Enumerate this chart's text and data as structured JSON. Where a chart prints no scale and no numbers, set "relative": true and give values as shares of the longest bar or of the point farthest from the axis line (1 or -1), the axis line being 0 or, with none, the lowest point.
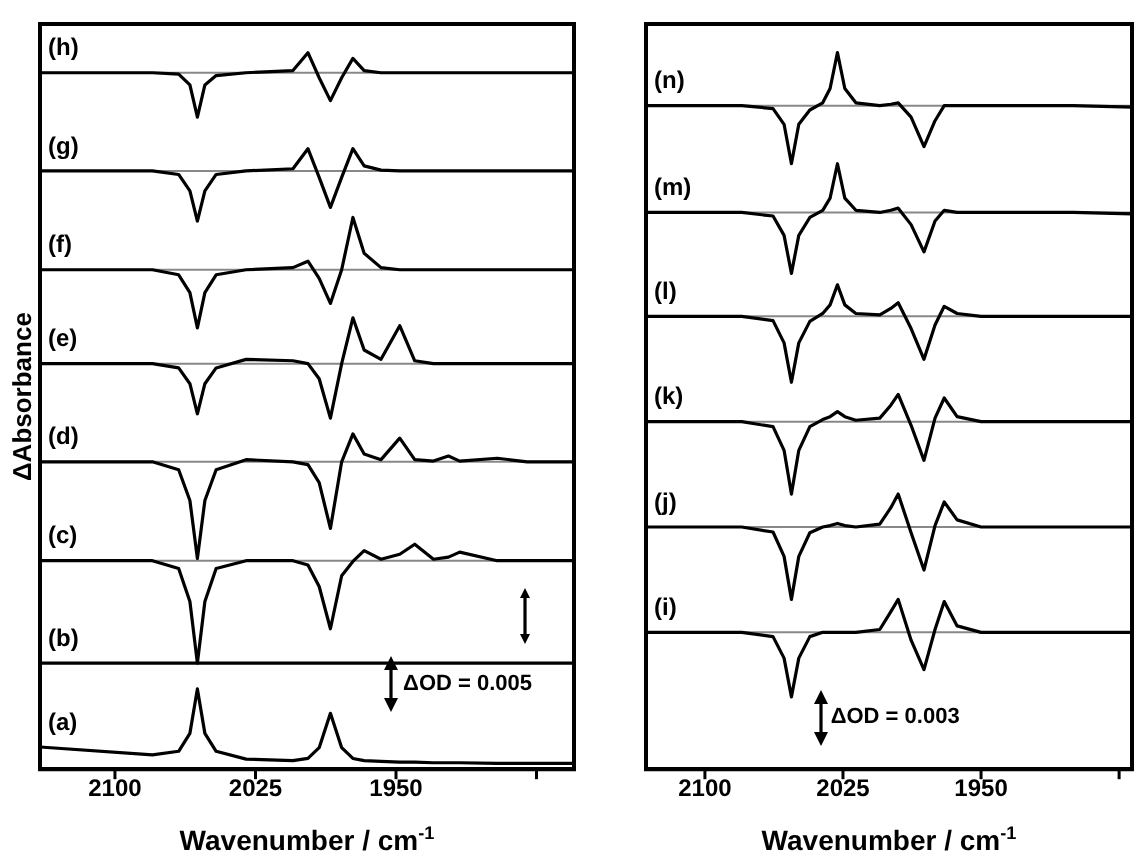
{
  "chart_data": [
    {
      "type": "line",
      "xlabel": "Wavenumber / cm$^{-1}$",
      "ylabel": "ΔAbsorbance",
      "relative": true,
      "legend": false,
      "grid": false,
      "marker": "none",
      "line_style": "solid",
      "tick_labels": "x",
      "xlim": [
        2140,
        1855
      ],
      "xticks": [
        2100,
        2025,
        1950,
        {
          "value": 1875,
          "label": null
        }
      ],
      "x": [
        2140,
        2080,
        2066,
        2060,
        2056,
        2052,
        2046,
        2030,
        2005,
        1997,
        1991,
        1985,
        1979,
        1973,
        1967,
        1958,
        1948,
        1940,
        1930,
        1922,
        1916,
        1896,
        1880,
        1855
      ],
      "series": [
        {
          "name": "(h)",
          "color": "#000000",
          "values": [
            0.972,
            0.972,
            0.97,
            0.955,
            0.91,
            0.955,
            0.968,
            0.972,
            0.975,
            1.0,
            0.965,
            0.933,
            0.965,
            0.992,
            0.975,
            0.972,
            0.972,
            0.972,
            0.972,
            0.972,
            0.972,
            0.972,
            0.972,
            0.972
          ]
        },
        {
          "name": "(g)",
          "color": "#000000",
          "values": [
            0.835,
            0.835,
            0.83,
            0.807,
            0.765,
            0.807,
            0.83,
            0.835,
            0.838,
            0.866,
            0.826,
            0.784,
            0.826,
            0.866,
            0.842,
            0.836,
            0.835,
            0.835,
            0.835,
            0.835,
            0.835,
            0.835,
            0.835,
            0.835
          ]
        },
        {
          "name": "(f)",
          "color": "#000000",
          "values": [
            0.697,
            0.697,
            0.69,
            0.665,
            0.616,
            0.665,
            0.69,
            0.697,
            0.7,
            0.709,
            0.685,
            0.65,
            0.697,
            0.77,
            0.72,
            0.7,
            0.697,
            0.697,
            0.697,
            0.697,
            0.697,
            0.697,
            0.697,
            0.697
          ]
        },
        {
          "name": "(e)",
          "color": "#000000",
          "values": [
            0.566,
            0.566,
            0.56,
            0.538,
            0.496,
            0.538,
            0.56,
            0.572,
            0.57,
            0.566,
            0.545,
            0.49,
            0.566,
            0.63,
            0.585,
            0.572,
            0.619,
            0.57,
            0.566,
            0.566,
            0.566,
            0.566,
            0.566,
            0.566
          ]
        },
        {
          "name": "(d)",
          "color": "#000000",
          "values": [
            0.429,
            0.429,
            0.418,
            0.375,
            0.294,
            0.375,
            0.418,
            0.432,
            0.429,
            0.425,
            0.4,
            0.336,
            0.429,
            0.468,
            0.44,
            0.432,
            0.462,
            0.432,
            0.43,
            0.437,
            0.43,
            0.434,
            0.429,
            0.429
          ]
        },
        {
          "name": "(c)",
          "color": "#000000",
          "values": [
            0.291,
            0.291,
            0.28,
            0.234,
            0.148,
            0.234,
            0.28,
            0.291,
            0.291,
            0.285,
            0.255,
            0.196,
            0.27,
            0.29,
            0.305,
            0.293,
            0.3,
            0.314,
            0.293,
            0.296,
            0.303,
            0.291,
            0.291,
            0.291
          ]
        },
        {
          "name": "(b)",
          "color": "#000000",
          "values": [
            0.148,
            0.148,
            0.148,
            0.148,
            0.148,
            0.148,
            0.148,
            0.148,
            0.148,
            0.148,
            0.148,
            0.148,
            0.148,
            0.148,
            0.148,
            0.148,
            0.148,
            0.148,
            0.148,
            0.148,
            0.148,
            0.148,
            0.148,
            0.148
          ]
        },
        {
          "name": "(a)",
          "color": "#000000",
          "values": [
            0.031,
            0.02,
            0.025,
            0.05,
            0.112,
            0.05,
            0.025,
            0.014,
            0.012,
            0.015,
            0.03,
            0.078,
            0.03,
            0.015,
            0.012,
            0.011,
            0.01,
            0.01,
            0.009,
            0.009,
            0.009,
            0.008,
            0.008,
            0.008
          ]
        }
      ],
      "ref_lines": [
        {
          "axis": "y",
          "value": 0.972,
          "color": "#888888"
        },
        {
          "axis": "y",
          "value": 0.835,
          "color": "#888888"
        },
        {
          "axis": "y",
          "value": 0.697,
          "color": "#888888"
        },
        {
          "axis": "y",
          "value": 0.566,
          "color": "#888888"
        },
        {
          "axis": "y",
          "value": 0.429,
          "color": "#888888"
        },
        {
          "axis": "y",
          "value": 0.291,
          "color": "#888888"
        }
      ],
      "annotations": [
        "ΔOD = 0.005"
      ]
    },
    {
      "type": "line",
      "xlabel": "Wavenumber / cm$^{-1}$",
      "relative": true,
      "legend": false,
      "grid": false,
      "marker": "none",
      "line_style": "solid",
      "tick_labels": "x",
      "xlim": [
        2132,
        1868
      ],
      "xticks": [
        2100,
        2025,
        1950,
        {
          "value": 1875,
          "label": null
        }
      ],
      "x": [
        2132,
        2080,
        2063,
        2057,
        2053,
        2049,
        2043,
        2036,
        2032,
        2028,
        2024,
        2018,
        2005,
        1999,
        1995,
        1988,
        1981,
        1975,
        1970,
        1963,
        1950,
        1900,
        1868
      ],
      "series": [
        {
          "name": "(n)",
          "color": "#000000",
          "values": [
            0.926,
            0.926,
            0.922,
            0.9,
            0.845,
            0.9,
            0.92,
            0.93,
            0.95,
            1.0,
            0.95,
            0.93,
            0.926,
            0.928,
            0.93,
            0.91,
            0.869,
            0.905,
            0.926,
            0.926,
            0.926,
            0.926,
            0.924
          ]
        },
        {
          "name": "(m)",
          "color": "#000000",
          "values": [
            0.777,
            0.777,
            0.772,
            0.745,
            0.692,
            0.745,
            0.77,
            0.78,
            0.797,
            0.845,
            0.797,
            0.78,
            0.777,
            0.78,
            0.783,
            0.76,
            0.722,
            0.765,
            0.78,
            0.777,
            0.777,
            0.777,
            0.775
          ]
        },
        {
          "name": "(l)",
          "color": "#000000",
          "values": [
            0.632,
            0.632,
            0.626,
            0.595,
            0.54,
            0.595,
            0.625,
            0.636,
            0.648,
            0.676,
            0.648,
            0.636,
            0.634,
            0.643,
            0.651,
            0.615,
            0.572,
            0.62,
            0.646,
            0.636,
            0.632,
            0.632,
            0.632
          ]
        },
        {
          "name": "(k)",
          "color": "#000000",
          "values": [
            0.485,
            0.485,
            0.478,
            0.445,
            0.384,
            0.445,
            0.478,
            0.488,
            0.492,
            0.499,
            0.492,
            0.487,
            0.49,
            0.508,
            0.523,
            0.48,
            0.431,
            0.49,
            0.518,
            0.492,
            0.485,
            0.485,
            0.485
          ]
        },
        {
          "name": "(j)",
          "color": "#000000",
          "values": [
            0.338,
            0.338,
            0.331,
            0.297,
            0.237,
            0.297,
            0.33,
            0.338,
            0.34,
            0.343,
            0.34,
            0.338,
            0.342,
            0.365,
            0.384,
            0.33,
            0.278,
            0.34,
            0.373,
            0.348,
            0.338,
            0.338,
            0.338
          ]
        },
        {
          "name": "(i)",
          "color": "#000000",
          "values": [
            0.191,
            0.191,
            0.185,
            0.155,
            0.101,
            0.155,
            0.185,
            0.191,
            0.191,
            0.191,
            0.191,
            0.191,
            0.195,
            0.22,
            0.237,
            0.18,
            0.139,
            0.195,
            0.234,
            0.2,
            0.191,
            0.191,
            0.191
          ]
        }
      ],
      "ref_lines": [
        {
          "axis": "y",
          "value": 0.926,
          "color": "#888888"
        },
        {
          "axis": "y",
          "value": 0.777,
          "color": "#888888"
        },
        {
          "axis": "y",
          "value": 0.632,
          "color": "#888888"
        },
        {
          "axis": "y",
          "value": 0.485,
          "color": "#888888"
        },
        {
          "axis": "y",
          "value": 0.338,
          "color": "#888888"
        },
        {
          "axis": "y",
          "value": 0.191,
          "color": "#888888"
        }
      ],
      "annotations": [
        "ΔOD = 0.003"
      ]
    }
  ]
}
